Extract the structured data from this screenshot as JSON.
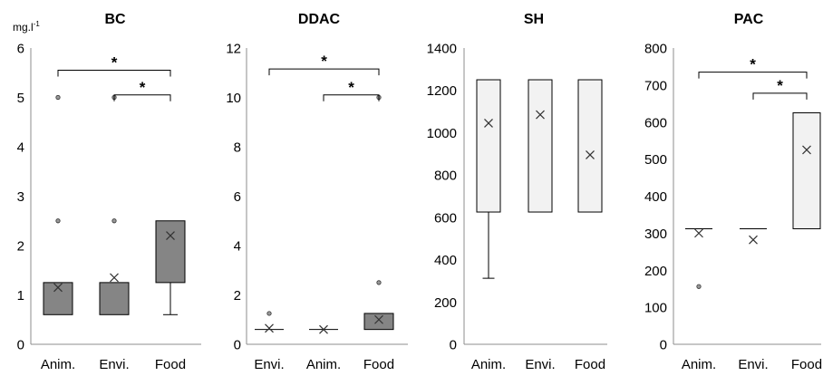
{
  "unit_label": "mg.l",
  "unit_exponent": "-1",
  "colors": {
    "dark_box": "#858585",
    "light_box": "#f2f2f2",
    "stroke": "#000000",
    "axis": "#8c8c8c"
  },
  "chart_data": [
    {
      "type": "boxplot",
      "title": "BC",
      "ylim": [
        0,
        6
      ],
      "yticks": [
        "0",
        "1",
        "2",
        "3",
        "4",
        "5",
        "6"
      ],
      "fill": "dark",
      "categories": [
        "Anim.",
        "Envi.",
        "Food"
      ],
      "boxes": [
        {
          "q1": 0.6,
          "q3": 1.25,
          "median": 0.6,
          "whisker_low": 0.6,
          "whisker_high": 1.25,
          "mean": 1.15,
          "outliers": [
            2.5,
            5
          ]
        },
        {
          "q1": 0.6,
          "q3": 1.25,
          "median": 0.6,
          "whisker_low": 0.6,
          "whisker_high": 1.25,
          "mean": 1.35,
          "outliers": [
            2.5,
            5
          ]
        },
        {
          "q1": 1.25,
          "q3": 2.5,
          "median": 1.25,
          "whisker_low": 0.6,
          "whisker_high": 2.5,
          "mean": 2.2,
          "outliers": []
        }
      ],
      "significance": [
        {
          "from": 0,
          "to": 2,
          "y": 5.55,
          "label": "*"
        },
        {
          "from": 1,
          "to": 2,
          "y": 5.05,
          "label": "*"
        }
      ]
    },
    {
      "type": "boxplot",
      "title": "DDAC",
      "ylim": [
        0,
        12
      ],
      "yticks": [
        "0",
        "2",
        "4",
        "6",
        "8",
        "10",
        "12"
      ],
      "fill": "dark",
      "categories": [
        "Envi.",
        "Anim.",
        "Food"
      ],
      "boxes": [
        {
          "q1": 0.6,
          "q3": 0.6,
          "median": 0.6,
          "whisker_low": 0.6,
          "whisker_high": 0.6,
          "mean": 0.65,
          "outliers": [
            1.25
          ]
        },
        {
          "q1": 0.6,
          "q3": 0.6,
          "median": 0.6,
          "whisker_low": 0.6,
          "whisker_high": 0.6,
          "mean": 0.6,
          "outliers": []
        },
        {
          "q1": 0.6,
          "q3": 1.25,
          "median": 0.6,
          "whisker_low": 0.6,
          "whisker_high": 1.25,
          "mean": 1.0,
          "outliers": [
            2.5,
            10
          ]
        }
      ],
      "significance": [
        {
          "from": 0,
          "to": 2,
          "y": 11.15,
          "label": "*"
        },
        {
          "from": 1,
          "to": 2,
          "y": 10.1,
          "label": "*"
        }
      ]
    },
    {
      "type": "boxplot",
      "title": "SH",
      "ylim": [
        0,
        1400
      ],
      "yticks": [
        "0",
        "200",
        "400",
        "600",
        "800",
        "1000",
        "1200",
        "1400"
      ],
      "fill": "light",
      "categories": [
        "Anim.",
        "Envi.",
        "Food"
      ],
      "boxes": [
        {
          "q1": 625,
          "q3": 1250,
          "median": 625,
          "whisker_low": 312,
          "whisker_high": 1250,
          "mean": 1045,
          "outliers": []
        },
        {
          "q1": 625,
          "q3": 1250,
          "median": 625,
          "whisker_low": 625,
          "whisker_high": 1250,
          "mean": 1085,
          "outliers": []
        },
        {
          "q1": 625,
          "q3": 1250,
          "median": 625,
          "whisker_low": 625,
          "whisker_high": 1250,
          "mean": 895,
          "outliers": []
        }
      ],
      "significance": []
    },
    {
      "type": "boxplot",
      "title": "PAC",
      "ylim": [
        0,
        800
      ],
      "yticks": [
        "0",
        "100",
        "200",
        "300",
        "400",
        "500",
        "600",
        "700",
        "800"
      ],
      "fill": "light",
      "categories": [
        "Anim.",
        "Envi.",
        "Food"
      ],
      "boxes": [
        {
          "q1": 312,
          "q3": 312,
          "median": 312,
          "whisker_low": 312,
          "whisker_high": 312,
          "mean": 300,
          "outliers": [
            156
          ]
        },
        {
          "q1": 312,
          "q3": 312,
          "median": 312,
          "whisker_low": 312,
          "whisker_high": 312,
          "mean": 282,
          "outliers": []
        },
        {
          "q1": 312,
          "q3": 625,
          "median": 312,
          "whisker_low": 312,
          "whisker_high": 625,
          "mean": 525,
          "outliers": []
        }
      ],
      "significance": [
        {
          "from": 0,
          "to": 2,
          "y": 735,
          "label": "*"
        },
        {
          "from": 1,
          "to": 2,
          "y": 678,
          "label": "*"
        }
      ]
    }
  ]
}
